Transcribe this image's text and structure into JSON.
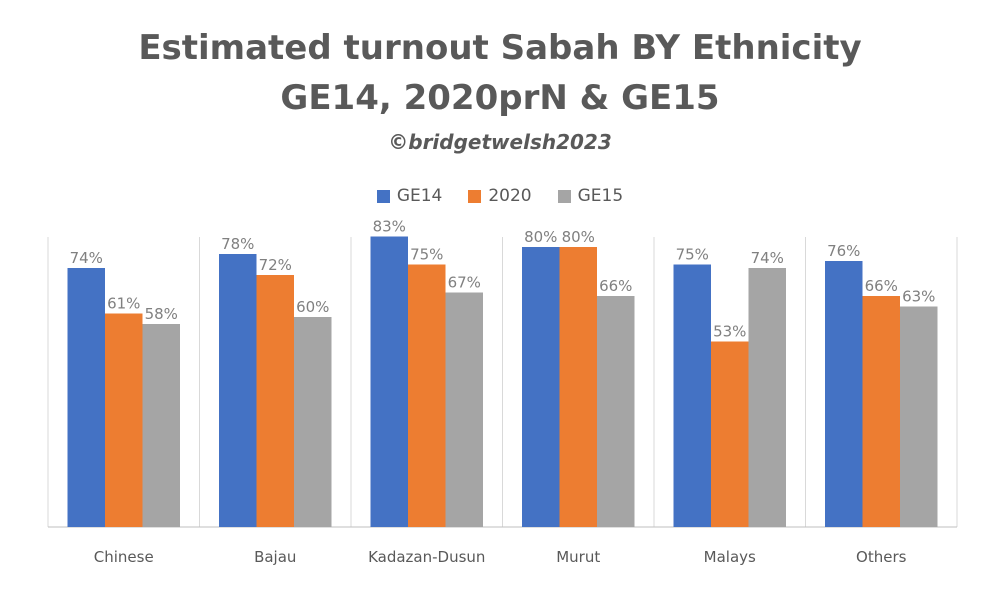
{
  "chart_data": {
    "type": "bar",
    "title": "Estimated turnout Sabah BY Ethnicity",
    "subtitle": "GE14, 2020prN & GE15",
    "credit": "©bridgetwelsh2023",
    "categories": [
      "Chinese",
      "Bajau",
      "Kadazan-Dusun",
      "Murut",
      "Malays",
      "Others"
    ],
    "series": [
      {
        "name": "GE14",
        "color": "#4472C4",
        "values": [
          74,
          78,
          83,
          80,
          75,
          76
        ],
        "labels": [
          "74%",
          "78%",
          "83%",
          "80%",
          "75%",
          "76%"
        ]
      },
      {
        "name": "2020",
        "color": "#ED7D31",
        "values": [
          61,
          72,
          75,
          80,
          53,
          66
        ],
        "labels": [
          "61%",
          "72%",
          "75%",
          "80%",
          "53%",
          "66%"
        ]
      },
      {
        "name": "GE15",
        "color": "#A5A5A5",
        "values": [
          58,
          60,
          67,
          66,
          74,
          63
        ],
        "labels": [
          "58%",
          "60%",
          "67%",
          "66%",
          "74%",
          "63%"
        ]
      }
    ],
    "ylim": [
      0,
      100
    ],
    "grid": false,
    "legend": "top-center"
  }
}
